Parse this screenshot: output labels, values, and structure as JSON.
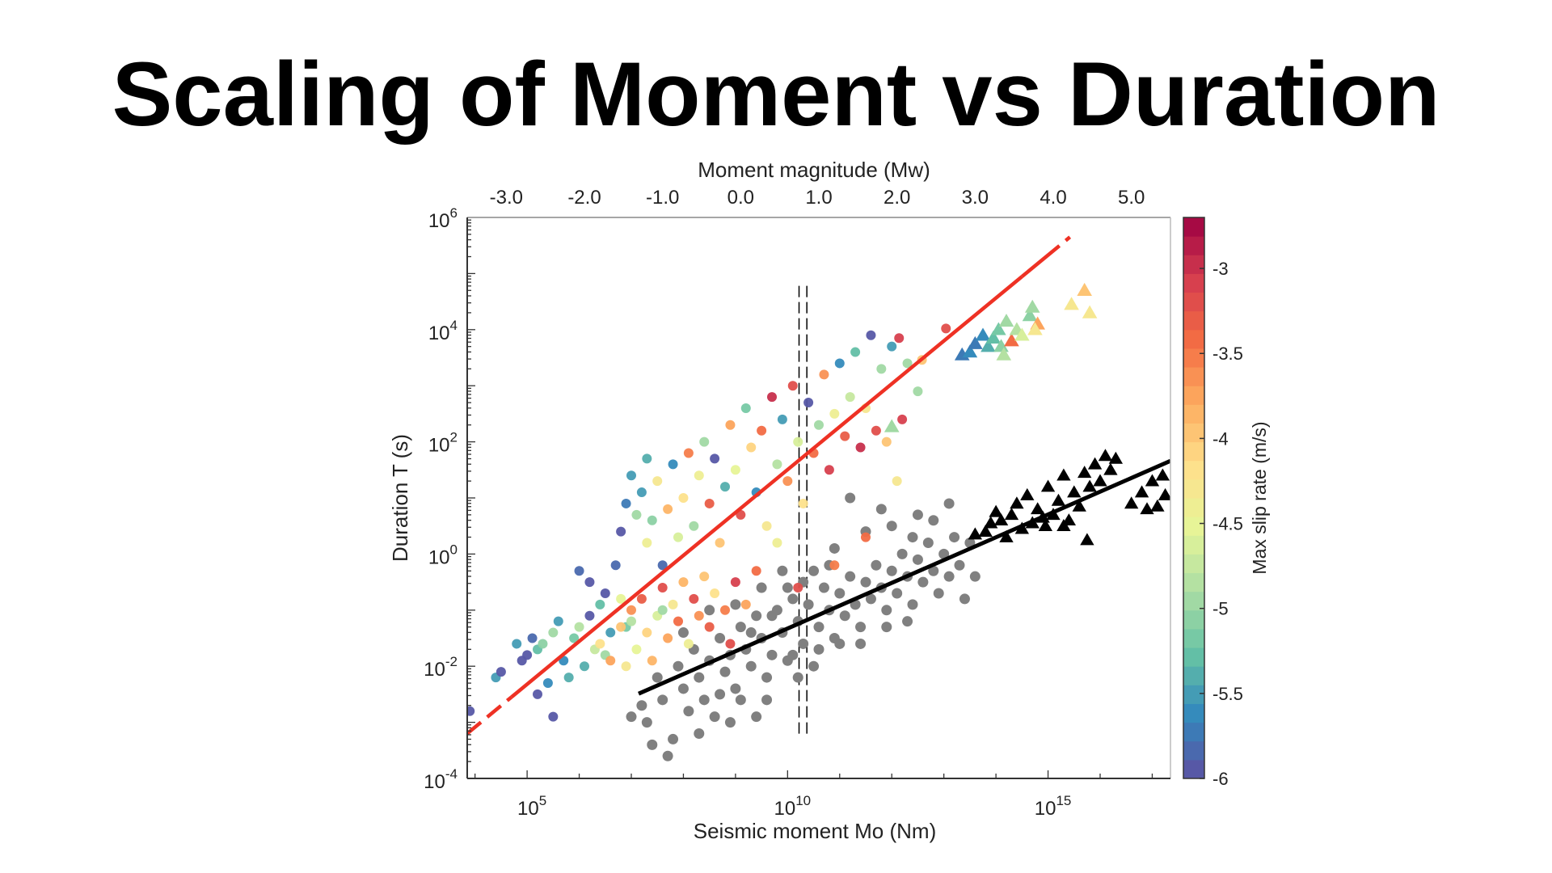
{
  "title": "Scaling of Moment vs Duration",
  "chart_data": {
    "type": "scatter",
    "title": "Scaling of Moment vs Duration",
    "xlabel": "Seismic moment Mo (Nm)",
    "ylabel": "Duration T (s)",
    "top_xlabel": "Moment magnitude (Mw)",
    "colorbar_label": "Max slip rate (m/s)",
    "x_scale": "log10",
    "y_scale": "log10",
    "xlim_log10": [
      3.85,
      17.35
    ],
    "ylim_log10": [
      -4,
      6
    ],
    "x_ticks": [
      {
        "exp": 5,
        "base": "10",
        "sup": "5"
      },
      {
        "exp": 10,
        "base": "10",
        "sup": "10"
      },
      {
        "exp": 15,
        "base": "10",
        "sup": "15"
      }
    ],
    "y_ticks": [
      {
        "exp": -4,
        "base": "10",
        "sup": "-4"
      },
      {
        "exp": -2,
        "base": "10",
        "sup": "-2"
      },
      {
        "exp": 0,
        "base": "10",
        "sup": "0"
      },
      {
        "exp": 2,
        "base": "10",
        "sup": "2"
      },
      {
        "exp": 4,
        "base": "10",
        "sup": "4"
      },
      {
        "exp": 6,
        "base": "10",
        "sup": "6"
      }
    ],
    "top_ticks": [
      {
        "mw": -3,
        "label": "-3.0"
      },
      {
        "mw": -2,
        "label": "-2.0"
      },
      {
        "mw": -1,
        "label": "-1.0"
      },
      {
        "mw": 0,
        "label": "0.0"
      },
      {
        "mw": 1,
        "label": "1.0"
      },
      {
        "mw": 2,
        "label": "2.0"
      },
      {
        "mw": 3,
        "label": "3.0"
      },
      {
        "mw": 4,
        "label": "4.0"
      },
      {
        "mw": 5,
        "label": "5.0"
      }
    ],
    "colorbar": {
      "range": [
        -6,
        -2.7
      ],
      "bands": 30,
      "ticks": [
        {
          "v": -3,
          "label": "-3"
        },
        {
          "v": -3.5,
          "label": "-3.5"
        },
        {
          "v": -4,
          "label": "-4"
        },
        {
          "v": -4.5,
          "label": "-4.5"
        },
        {
          "v": -5,
          "label": "-5"
        },
        {
          "v": -5.5,
          "label": "-5.5"
        },
        {
          "v": -6,
          "label": "-6"
        }
      ],
      "colormap": [
        "#5e4fa2",
        "#3288bd",
        "#66c2a5",
        "#abdda4",
        "#e6f598",
        "#fee08b",
        "#fdae61",
        "#f46d43",
        "#d53e4f",
        "#9e0142"
      ]
    },
    "point_format": "[log10 Mo, log10 T, log10 max slip rate]",
    "colored_circles": [
      [
        3.9,
        -2.8,
        -6
      ],
      [
        4.4,
        -2.2,
        -5.5
      ],
      [
        4.5,
        -2.1,
        -6
      ],
      [
        4.8,
        -1.6,
        -5.5
      ],
      [
        4.9,
        -1.9,
        -6
      ],
      [
        5.0,
        -1.8,
        -5.9
      ],
      [
        5.1,
        -1.5,
        -5.8
      ],
      [
        5.2,
        -1.7,
        -5.3
      ],
      [
        5.3,
        -1.6,
        -5.1
      ],
      [
        5.4,
        -2.3,
        -5.6
      ],
      [
        5.5,
        -1.4,
        -5.0
      ],
      [
        5.6,
        -1.2,
        -5.5
      ],
      [
        5.5,
        -2.9,
        -6
      ],
      [
        5.2,
        -2.5,
        -6
      ],
      [
        5.7,
        -1.9,
        -5.6
      ],
      [
        5.9,
        -1.5,
        -5.2
      ],
      [
        6.0,
        -1.3,
        -4.8
      ],
      [
        6.1,
        -2.0,
        -5.4
      ],
      [
        6.2,
        -1.1,
        -5.9
      ],
      [
        6.3,
        -1.7,
        -4.7
      ],
      [
        6.4,
        -0.9,
        -5.3
      ],
      [
        6.0,
        -0.3,
        -5.8
      ],
      [
        6.2,
        -0.5,
        -6
      ],
      [
        6.5,
        -0.7,
        -5.9
      ],
      [
        6.6,
        -1.4,
        -5.5
      ],
      [
        6.7,
        -0.2,
        -5.8
      ],
      [
        6.8,
        -0.8,
        -4.5
      ],
      [
        6.9,
        -1.3,
        -5.2
      ],
      [
        5.8,
        -2.2,
        -5.4
      ],
      [
        6.5,
        -1.8,
        -5.0
      ],
      [
        6.8,
        0.4,
        -5.9
      ],
      [
        6.9,
        0.9,
        -5.7
      ],
      [
        7.1,
        0.7,
        -4.9
      ],
      [
        7.2,
        1.1,
        -5.5
      ],
      [
        7.3,
        0.2,
        -4.4
      ],
      [
        7.4,
        0.6,
        -5.1
      ],
      [
        7.5,
        1.3,
        -4.3
      ],
      [
        7.6,
        -0.2,
        -5.8
      ],
      [
        7.7,
        0.8,
        -3.9
      ],
      [
        7.8,
        1.6,
        -5.6
      ],
      [
        7.9,
        0.3,
        -4.6
      ],
      [
        8.0,
        1.0,
        -4.2
      ],
      [
        8.1,
        1.8,
        -3.5
      ],
      [
        8.2,
        0.5,
        -5.0
      ],
      [
        8.3,
        1.4,
        -4.4
      ],
      [
        8.4,
        2.0,
        -4.9
      ],
      [
        8.5,
        0.9,
        -3.3
      ],
      [
        8.6,
        1.7,
        -5.9
      ],
      [
        8.7,
        0.2,
        -4.0
      ],
      [
        8.8,
        1.2,
        -5.4
      ],
      [
        8.9,
        2.3,
        -3.7
      ],
      [
        9.0,
        1.5,
        -4.5
      ],
      [
        9.1,
        0.7,
        -3.2
      ],
      [
        9.2,
        2.6,
        -5.2
      ],
      [
        9.3,
        1.9,
        -4.1
      ],
      [
        9.4,
        1.1,
        -5.6
      ],
      [
        9.5,
        2.2,
        -3.4
      ],
      [
        9.6,
        0.5,
        -4.3
      ],
      [
        9.7,
        2.8,
        -3.0
      ],
      [
        9.8,
        1.6,
        -4.8
      ],
      [
        9.9,
        2.4,
        -5.5
      ],
      [
        10.0,
        1.3,
        -3.6
      ],
      [
        10.1,
        3.0,
        -3.2
      ],
      [
        10.2,
        2.0,
        -4.6
      ],
      [
        10.3,
        0.9,
        -4.2
      ],
      [
        10.4,
        2.7,
        -5.9
      ],
      [
        10.5,
        1.8,
        -3.4
      ],
      [
        10.6,
        2.3,
        -4.9
      ],
      [
        10.7,
        3.2,
        -3.6
      ],
      [
        10.8,
        1.5,
        -3.1
      ],
      [
        10.9,
        2.5,
        -4.4
      ],
      [
        11.0,
        3.4,
        -5.6
      ],
      [
        11.1,
        2.1,
        -3.3
      ],
      [
        11.2,
        2.8,
        -4.7
      ],
      [
        11.3,
        3.6,
        -5.3
      ],
      [
        11.4,
        1.9,
        -3.0
      ],
      [
        11.5,
        2.6,
        -4.3
      ],
      [
        11.6,
        3.9,
        -5.9
      ],
      [
        11.7,
        2.2,
        -3.2
      ],
      [
        11.8,
        3.3,
        -4.9
      ],
      [
        11.9,
        2.0,
        -4.0
      ],
      [
        12.0,
        3.7,
        -5.5
      ],
      [
        12.2,
        2.4,
        -3.1
      ],
      [
        12.3,
        3.4,
        -5.0
      ],
      [
        12.1,
        1.3,
        -4.3
      ],
      [
        7.0,
        1.4,
        -5.5
      ],
      [
        7.3,
        1.7,
        -5.4
      ],
      [
        10.2,
        -0.6,
        -3.2
      ],
      [
        10.9,
        -0.2,
        -3.5
      ],
      [
        11.5,
        0.3,
        -3.4
      ],
      [
        9.8,
        0.2,
        -4.4
      ],
      [
        12.5,
        2.9,
        -4.9
      ],
      [
        12.14,
        3.85,
        -3.1
      ],
      [
        13.04,
        4.02,
        -3.2
      ],
      [
        12.58,
        3.46,
        -4.0
      ],
      [
        6.4,
        -1.6,
        -4.2
      ],
      [
        6.6,
        -1.9,
        -3.8
      ],
      [
        6.8,
        -1.3,
        -4.0
      ],
      [
        7.0,
        -1.0,
        -3.6
      ],
      [
        7.1,
        -1.7,
        -4.5
      ],
      [
        7.2,
        -0.8,
        -3.3
      ],
      [
        7.3,
        -1.4,
        -4.1
      ],
      [
        7.4,
        -1.9,
        -3.9
      ],
      [
        7.5,
        -1.1,
        -4.6
      ],
      [
        7.6,
        -0.6,
        -3.2
      ],
      [
        7.7,
        -1.5,
        -3.7
      ],
      [
        7.8,
        -0.9,
        -4.3
      ],
      [
        7.9,
        -1.2,
        -3.4
      ],
      [
        8.0,
        -0.5,
        -3.9
      ],
      [
        8.1,
        -1.6,
        -4.4
      ],
      [
        8.2,
        -0.8,
        -3.2
      ],
      [
        8.3,
        -1.1,
        -3.6
      ],
      [
        8.4,
        -0.4,
        -4.0
      ],
      [
        8.5,
        -1.3,
        -3.3
      ],
      [
        8.6,
        -0.7,
        -4.2
      ],
      [
        8.8,
        -1.0,
        -3.5
      ],
      [
        9.0,
        -0.5,
        -3.1
      ],
      [
        9.2,
        -0.9,
        -3.8
      ],
      [
        9.4,
        -0.3,
        -3.4
      ],
      [
        8.9,
        -1.6,
        -3.2
      ],
      [
        6.9,
        -2.0,
        -4.3
      ],
      [
        7.0,
        -1.2,
        -4.8
      ],
      [
        7.6,
        -1.0,
        -5.0
      ]
    ],
    "colored_triangles": [
      [
        13.35,
        3.55,
        -5.7
      ],
      [
        13.5,
        3.6,
        -5.6
      ],
      [
        13.6,
        3.75,
        -5.7
      ],
      [
        13.75,
        3.9,
        -5.6
      ],
      [
        13.85,
        3.7,
        -5.4
      ],
      [
        13.95,
        3.85,
        -5.3
      ],
      [
        14.05,
        4.0,
        -5.2
      ],
      [
        14.1,
        3.7,
        -5.1
      ],
      [
        14.2,
        4.15,
        -5.0
      ],
      [
        14.15,
        3.55,
        -4.8
      ],
      [
        14.3,
        3.8,
        -3.4
      ],
      [
        14.4,
        4.0,
        -4.8
      ],
      [
        14.5,
        3.9,
        -4.6
      ],
      [
        14.65,
        4.25,
        -5.1
      ],
      [
        14.7,
        4.4,
        -5.0
      ],
      [
        14.8,
        4.1,
        -3.8
      ],
      [
        14.75,
        4.0,
        -4.3
      ],
      [
        15.45,
        4.45,
        -4.3
      ],
      [
        15.7,
        4.7,
        -4.0
      ],
      [
        15.8,
        4.3,
        -4.3
      ],
      [
        12.0,
        2.27,
        -5.0
      ]
    ],
    "gray_circles": [
      [
        7.0,
        -2.9
      ],
      [
        7.2,
        -2.7
      ],
      [
        7.3,
        -3.0
      ],
      [
        7.5,
        -2.2
      ],
      [
        7.6,
        -2.6
      ],
      [
        7.8,
        -3.3
      ],
      [
        7.9,
        -2.0
      ],
      [
        8.0,
        -2.4
      ],
      [
        8.1,
        -2.8
      ],
      [
        8.2,
        -1.7
      ],
      [
        8.3,
        -2.2
      ],
      [
        8.4,
        -2.6
      ],
      [
        8.5,
        -1.9
      ],
      [
        8.6,
        -2.9
      ],
      [
        8.7,
        -1.5
      ],
      [
        8.8,
        -2.1
      ],
      [
        8.9,
        -1.8
      ],
      [
        9.0,
        -2.4
      ],
      [
        9.1,
        -1.3
      ],
      [
        9.2,
        -1.7
      ],
      [
        9.3,
        -2.0
      ],
      [
        9.4,
        -1.1
      ],
      [
        9.5,
        -1.5
      ],
      [
        9.6,
        -2.2
      ],
      [
        9.7,
        -1.8
      ],
      [
        9.8,
        -1.0
      ],
      [
        9.9,
        -1.4
      ],
      [
        10.0,
        -1.9
      ],
      [
        10.1,
        -0.8
      ],
      [
        10.2,
        -1.2
      ],
      [
        10.3,
        -1.6
      ],
      [
        10.4,
        -0.9
      ],
      [
        10.5,
        -2.0
      ],
      [
        10.6,
        -1.3
      ],
      [
        10.7,
        -0.6
      ],
      [
        10.8,
        -1.0
      ],
      [
        10.9,
        -1.5
      ],
      [
        11.0,
        -0.7
      ],
      [
        11.1,
        -1.1
      ],
      [
        11.2,
        -0.4
      ],
      [
        11.3,
        -0.9
      ],
      [
        11.4,
        -1.3
      ],
      [
        11.5,
        -0.5
      ],
      [
        11.6,
        -0.8
      ],
      [
        11.7,
        -0.2
      ],
      [
        11.8,
        -0.6
      ],
      [
        11.9,
        -1.0
      ],
      [
        12.0,
        -0.3
      ],
      [
        12.1,
        -0.7
      ],
      [
        12.2,
        0.0
      ],
      [
        12.3,
        -0.4
      ],
      [
        12.4,
        -0.9
      ],
      [
        12.5,
        -0.1
      ],
      [
        12.6,
        -0.5
      ],
      [
        12.7,
        0.2
      ],
      [
        12.8,
        -0.3
      ],
      [
        12.9,
        -0.7
      ],
      [
        13.0,
        0.0
      ],
      [
        13.1,
        -0.4
      ],
      [
        13.2,
        0.3
      ],
      [
        13.3,
        -0.2
      ],
      [
        13.4,
        -0.8
      ],
      [
        11.2,
        1.0
      ],
      [
        9.5,
        -0.6
      ],
      [
        9.9,
        -0.3
      ],
      [
        10.3,
        -0.5
      ],
      [
        10.8,
        -0.2
      ],
      [
        11.5,
        0.4
      ],
      [
        12.0,
        0.5
      ],
      [
        12.5,
        0.7
      ],
      [
        8.0,
        -1.4
      ],
      [
        8.5,
        -1.0
      ],
      [
        9.0,
        -0.9
      ],
      [
        9.3,
        -1.4
      ],
      [
        9.7,
        -1.1
      ],
      [
        10.1,
        -1.8
      ],
      [
        10.6,
        -1.7
      ],
      [
        11.0,
        -1.6
      ],
      [
        11.4,
        -1.6
      ],
      [
        11.9,
        -1.3
      ],
      [
        12.3,
        -1.2
      ],
      [
        8.3,
        -3.2
      ],
      [
        8.7,
        -2.5
      ],
      [
        9.1,
        -2.6
      ],
      [
        9.6,
        -2.6
      ],
      [
        10.2,
        -2.2
      ],
      [
        10.0,
        -0.6
      ],
      [
        10.5,
        -0.3
      ],
      [
        12.8,
        0.6
      ],
      [
        13.5,
        0.2
      ],
      [
        13.6,
        -0.4
      ],
      [
        9.4,
        -2.9
      ],
      [
        8.9,
        -3.0
      ],
      [
        7.7,
        -3.6
      ],
      [
        7.4,
        -3.4
      ],
      [
        11.8,
        0.8
      ],
      [
        12.4,
        0.3
      ],
      [
        13.1,
        0.9
      ],
      [
        10.9,
        0.1
      ]
    ],
    "black_triangles": [
      [
        13.6,
        0.35
      ],
      [
        13.8,
        0.4
      ],
      [
        13.9,
        0.55
      ],
      [
        14.1,
        0.6
      ],
      [
        14.0,
        0.75
      ],
      [
        14.2,
        0.3
      ],
      [
        14.3,
        0.7
      ],
      [
        14.4,
        0.9
      ],
      [
        14.5,
        0.45
      ],
      [
        14.6,
        1.05
      ],
      [
        14.7,
        0.55
      ],
      [
        14.8,
        0.8
      ],
      [
        14.9,
        0.65
      ],
      [
        15.0,
        1.2
      ],
      [
        14.95,
        0.5
      ],
      [
        15.1,
        0.7
      ],
      [
        15.2,
        0.95
      ],
      [
        15.3,
        1.4
      ],
      [
        15.4,
        0.6
      ],
      [
        15.5,
        1.1
      ],
      [
        15.6,
        0.85
      ],
      [
        15.7,
        1.45
      ],
      [
        15.8,
        1.2
      ],
      [
        15.9,
        1.6
      ],
      [
        16.0,
        1.3
      ],
      [
        16.1,
        1.75
      ],
      [
        16.2,
        1.5
      ],
      [
        16.3,
        1.7
      ],
      [
        15.75,
        0.25
      ],
      [
        15.3,
        0.5
      ],
      [
        16.6,
        0.9
      ],
      [
        16.8,
        1.1
      ],
      [
        17.0,
        1.3
      ],
      [
        17.1,
        0.85
      ],
      [
        16.9,
        0.8
      ],
      [
        17.2,
        1.4
      ],
      [
        17.25,
        1.05
      ]
    ],
    "fit_lines": [
      {
        "name": "slow-earthquake-fit",
        "color": "#ee3124",
        "from": [
          3.85,
          -3.2
        ],
        "to": [
          15.42,
          5.65
        ],
        "dashed_below": 4.7,
        "dashed_above": 14.5
      },
      {
        "name": "regular-earthquake-fit",
        "color": "#000000",
        "from": [
          7.14,
          -2.49
        ],
        "to": [
          17.35,
          1.66
        ]
      }
    ],
    "vertical_dashed_lines": [
      {
        "x": 10.22,
        "y_range": [
          -3.22,
          4.78
        ]
      },
      {
        "x": 10.37,
        "y_range": [
          -3.22,
          4.78
        ]
      }
    ],
    "gray_color": "#808080",
    "grid": false
  }
}
